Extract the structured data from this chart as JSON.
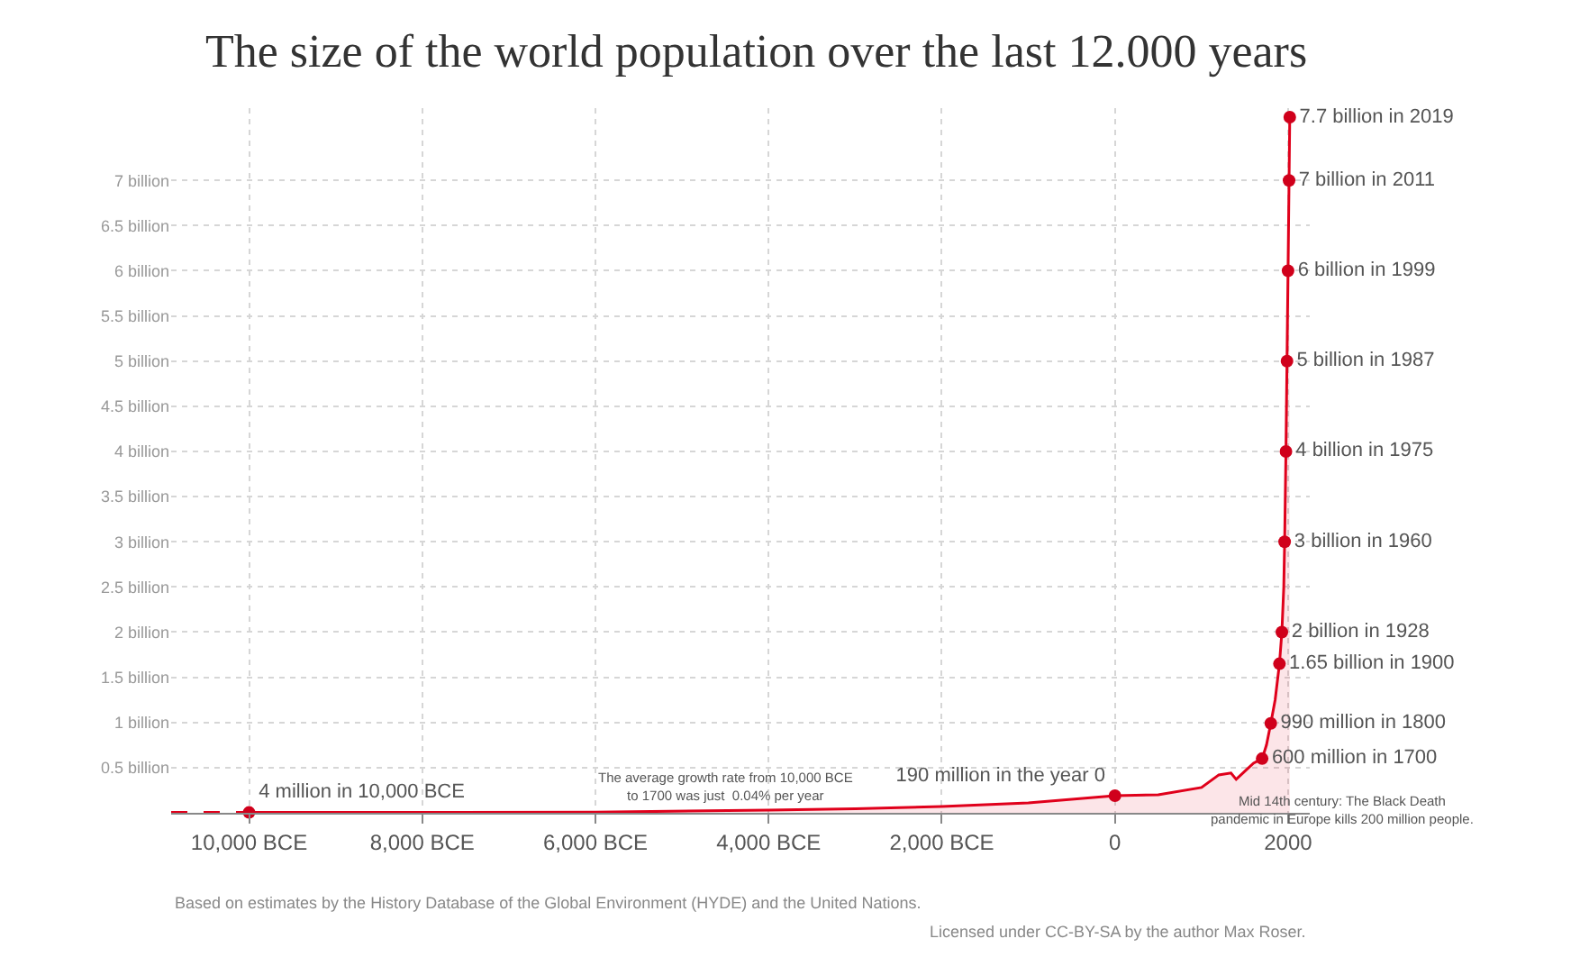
{
  "chart_data": {
    "type": "area",
    "title": "The size of the world population over the last 12.000 years",
    "xlim": [
      -10900,
      2250
    ],
    "ylim": [
      0,
      7.8
    ],
    "xticks": [
      {
        "value": -10000,
        "label": "10,000 BCE"
      },
      {
        "value": -8000,
        "label": "8,000 BCE"
      },
      {
        "value": -6000,
        "label": "6,000 BCE"
      },
      {
        "value": -4000,
        "label": "4,000 BCE"
      },
      {
        "value": -2000,
        "label": "2,000 BCE"
      },
      0,
      2000
    ],
    "yticks": [
      {
        "value": 0,
        "label": null
      },
      {
        "value": 0.5,
        "label": "0.5 billion"
      },
      {
        "value": 1,
        "label": "1 billion"
      },
      {
        "value": 1.5,
        "label": "1.5 billion"
      },
      {
        "value": 2,
        "label": "2 billion"
      },
      {
        "value": 2.5,
        "label": "2.5 billion"
      },
      {
        "value": 3,
        "label": "3 billion"
      },
      {
        "value": 3.5,
        "label": "3.5 billion"
      },
      {
        "value": 4,
        "label": "4 billion"
      },
      {
        "value": 4.5,
        "label": "4.5 billion"
      },
      {
        "value": 5,
        "label": "5 billion"
      },
      {
        "value": 5.5,
        "label": "5.5 billion"
      },
      {
        "value": 6,
        "label": "6 billion"
      },
      {
        "value": 6.5,
        "label": "6.5 billion"
      },
      {
        "value": 7,
        "label": "7 billion"
      }
    ],
    "grid": true,
    "series": [
      {
        "type": "line",
        "line_style": "dashed",
        "color": "#e0001b",
        "x": [
          -10900,
          -10000
        ],
        "values": [
          0.004,
          0.004
        ]
      },
      {
        "color": "#e0001b",
        "x": [
          -10000,
          -8000,
          -6000,
          -4000,
          -3000,
          -2000,
          -1000,
          0,
          500,
          1000,
          1200,
          1340,
          1400,
          1500,
          1600,
          1700,
          1750,
          1800,
          1850,
          1900,
          1928,
          1950,
          1960,
          1975,
          1987,
          1999,
          2011,
          2019
        ],
        "values": [
          0.004,
          0.005,
          0.007,
          0.03,
          0.045,
          0.07,
          0.11,
          0.19,
          0.2,
          0.28,
          0.42,
          0.44,
          0.37,
          0.46,
          0.55,
          0.6,
          0.75,
          0.99,
          1.25,
          1.65,
          2,
          2.5,
          3,
          4,
          5,
          6,
          7,
          7.7
        ]
      },
      {
        "type": "scatter",
        "marker": "circle",
        "color": "#d0001b",
        "x": [
          -10000,
          0,
          1700,
          1800,
          1900,
          1928,
          1960,
          1975,
          1987,
          1999,
          2011,
          2019
        ],
        "values": [
          0.004,
          0.19,
          0.6,
          0.99,
          1.65,
          2,
          3,
          4,
          5,
          6,
          7,
          7.7
        ],
        "value_labels": [
          "4 million in 10,000 BCE",
          "190 million in the year 0",
          "600 million in 1700",
          "990 million in 1800",
          "1.65 billion in 1900",
          "2 billion in 1928",
          "3 billion in 1960",
          "4 billion in 1975",
          "5 billion in 1987",
          "6 billion in 1999",
          "7 billion in 2011",
          "7.7 billion in 2019"
        ]
      }
    ],
    "annotations": [
      {
        "text": "The average growth rate from 10,000 BCE\nto 1700 was just  0.04% per year",
        "x": -4500,
        "y": 0.03
      },
      {
        "text": "Mid 14th century: The Black Death\npandemic in Europe kills 200 million people.",
        "x": 1350,
        "y": 0.37
      },
      "Based on estimates by the History Database of the Global Environment (HYDE) and the United Nations.",
      "Licensed under CC-BY-SA by the author Max Roser."
    ]
  }
}
